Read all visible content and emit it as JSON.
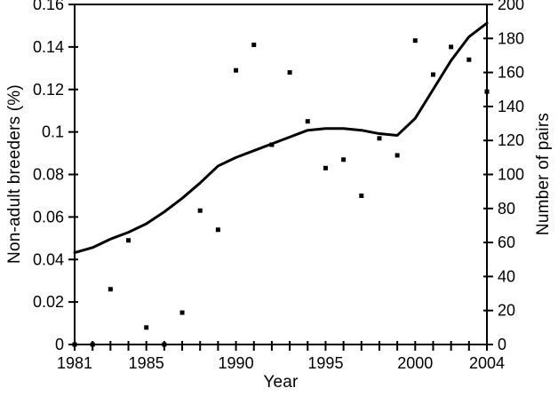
{
  "colors": {
    "background": "#ffffff",
    "foreground": "#000000",
    "line": "#000000",
    "marker": "#000000"
  },
  "chart_data": {
    "type": "line",
    "subtype": "line-and-scatter-dual-axis",
    "title": "",
    "xlabel": "Year",
    "x_range": [
      1981,
      2004
    ],
    "x_minor_tick_every": 1,
    "x_ticks_labeled": [
      1981,
      1985,
      1990,
      1995,
      2000,
      2004
    ],
    "x_tick_labels": [
      "1981",
      "1985",
      "1990",
      "1995",
      "2000",
      "2004"
    ],
    "grid": "off",
    "legend": "none",
    "left_axis": {
      "label": "Non-adult breeders (%)",
      "range": [
        0,
        0.16
      ],
      "tick_step": 0.02,
      "tick_labels": [
        "0",
        "0.02",
        "0.04",
        "0.06",
        "0.08",
        "0.1",
        "0.12",
        "0.14",
        "0.16"
      ]
    },
    "right_axis": {
      "label": "Number of pairs",
      "range": [
        0,
        200
      ],
      "tick_step": 20,
      "tick_labels": [
        "0",
        "20",
        "40",
        "60",
        "80",
        "100",
        "120",
        "140",
        "160",
        "180",
        "200"
      ]
    },
    "x": [
      1981,
      1982,
      1983,
      1984,
      1985,
      1986,
      1987,
      1988,
      1989,
      1990,
      1991,
      1992,
      1993,
      1994,
      1995,
      1996,
      1997,
      1998,
      1999,
      2000,
      2001,
      2002,
      2003,
      2004
    ],
    "series": [
      {
        "name": "Non-adult breeders (%)",
        "type": "scatter",
        "axis": "left",
        "marker": "square",
        "marker_size": 5,
        "values": [
          0,
          0,
          0.026,
          0.049,
          0.008,
          0,
          0.015,
          0.063,
          0.054,
          0.129,
          0.141,
          0.094,
          0.128,
          0.105,
          0.083,
          0.087,
          0.07,
          0.097,
          0.089,
          0.143,
          0.127,
          0.14,
          0.134,
          0.119
        ]
      },
      {
        "name": "Number of pairs",
        "type": "line",
        "axis": "right",
        "stroke_width": 3,
        "values": [
          54,
          57,
          62,
          66,
          71,
          78,
          86,
          95,
          105,
          110,
          114,
          118,
          122,
          126,
          127,
          127,
          126,
          124,
          123,
          133,
          150,
          167,
          181,
          189
        ]
      }
    ]
  }
}
